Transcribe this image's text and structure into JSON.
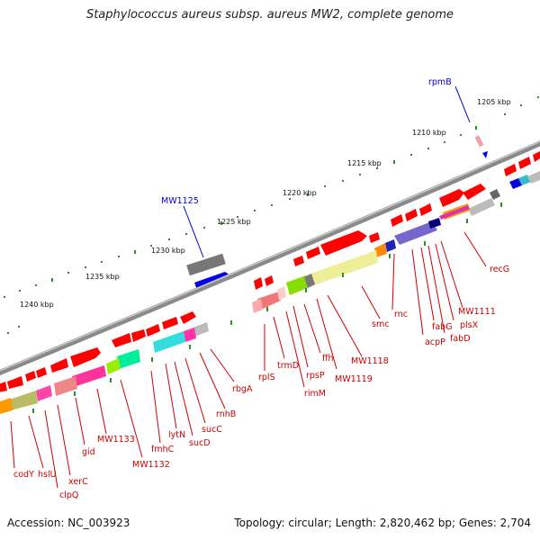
{
  "title": "Staphylococcus aureus subsp. aureus MW2, complete genome",
  "footer": {
    "accession": "Accession: NC_003923",
    "topology": "Topology: circular; Length: 2,820,462 bp; Genes: 2,704"
  },
  "scale_labels": [
    "1205 kbp",
    "1210 kbp",
    "1215 kbp",
    "1220 kbp",
    "1225 kbp",
    "1230 kbp",
    "1235 kbp",
    "1240 kbp"
  ],
  "gene_labels": {
    "red": [
      "recG",
      "MW1111",
      "plsX",
      "fabD",
      "fabG",
      "acpP",
      "rnc",
      "smc",
      "MW1118",
      "MW1119",
      "ffh",
      "rpsP",
      "rimM",
      "trmD",
      "rplS",
      "rbgA",
      "rnhB",
      "sucC",
      "sucD",
      "lytN",
      "fmhC",
      "MW1132",
      "MW1133",
      "gid",
      "xerC",
      "clpQ",
      "hslU",
      "codY"
    ],
    "blue": [
      "rpmB",
      "MW1125"
    ]
  },
  "colors": {
    "backbone": "#8a8a8a",
    "cds_forward": "#ff0000",
    "label_red": "#cc0000",
    "label_blue": "#0000cc",
    "tick_green": "#2e8b2e"
  }
}
